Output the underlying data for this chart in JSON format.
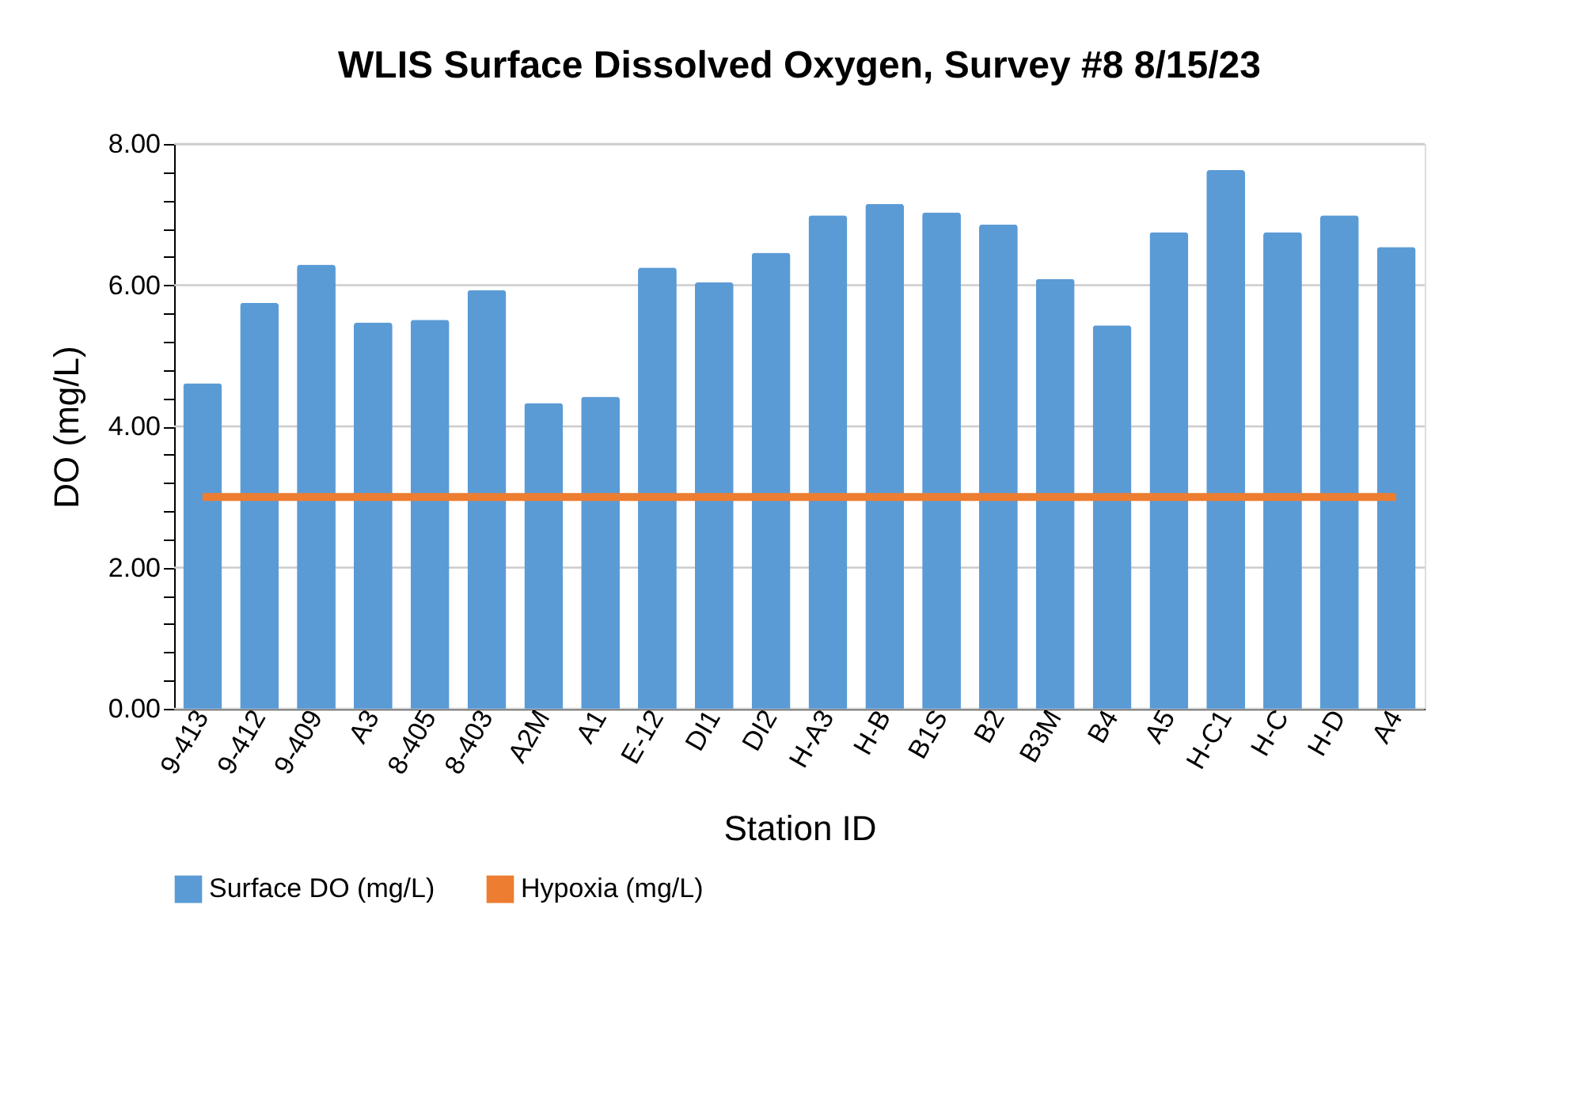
{
  "chart_data": {
    "type": "bar",
    "title": "WLIS Surface Dissolved Oxygen, Survey #8 8/15/23",
    "xlabel": "Station ID",
    "ylabel": "DO (mg/L)",
    "categories": [
      "9-413",
      "9-412",
      "9-409",
      "A3",
      "8-405",
      "8-403",
      "A2M",
      "A1",
      "E-12",
      "DI1",
      "DI2",
      "H-A3",
      "H-B",
      "B1S",
      "B2",
      "B3M",
      "B4",
      "A5",
      "H-C1",
      "H-C",
      "H-D",
      "A4"
    ],
    "series": [
      {
        "name": "Surface DO (mg/L)",
        "color": "#5b9bd5",
        "values": [
          4.61,
          5.75,
          6.29,
          5.47,
          5.51,
          5.93,
          4.33,
          4.42,
          6.25,
          6.04,
          6.46,
          6.99,
          7.15,
          7.03,
          6.86,
          6.09,
          5.43,
          6.75,
          7.63,
          6.75,
          6.99,
          6.54
        ]
      },
      {
        "name": "Hypoxia (mg/L)",
        "type": "line",
        "color": "#ed7d31",
        "values": [
          3,
          3,
          3,
          3,
          3,
          3,
          3,
          3,
          3,
          3,
          3,
          3,
          3,
          3,
          3,
          3,
          3,
          3,
          3,
          3,
          3,
          3
        ]
      }
    ],
    "ylim": [
      0,
      8
    ],
    "yticks": [
      {
        "value": 0,
        "label": "0.00"
      },
      {
        "value": 0.4,
        "label": null
      },
      {
        "value": 0.8,
        "label": null
      },
      {
        "value": 1.2,
        "label": null
      },
      {
        "value": 1.6,
        "label": null
      },
      {
        "value": 2,
        "label": "2.00"
      },
      {
        "value": 2.4,
        "label": null
      },
      {
        "value": 2.8,
        "label": null
      },
      {
        "value": 3.2,
        "label": null
      },
      {
        "value": 3.6,
        "label": null
      },
      {
        "value": 4,
        "label": "4.00"
      },
      {
        "value": 4.4,
        "label": null
      },
      {
        "value": 4.8,
        "label": null
      },
      {
        "value": 5.2,
        "label": null
      },
      {
        "value": 5.6,
        "label": null
      },
      {
        "value": 6,
        "label": "6.00"
      },
      {
        "value": 6.4,
        "label": null
      },
      {
        "value": 6.8,
        "label": null
      },
      {
        "value": 7.2,
        "label": null
      },
      {
        "value": 7.6,
        "label": null
      },
      {
        "value": 8,
        "label": "8.00"
      }
    ],
    "grid": "y",
    "legend": "bottom"
  }
}
